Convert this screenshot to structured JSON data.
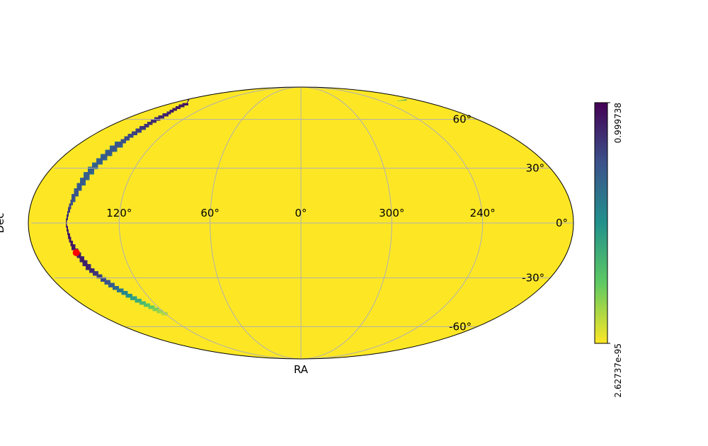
{
  "chart_data": {
    "type": "heatmap",
    "projection": "mollweide",
    "title": "",
    "xlabel": "RA",
    "ylabel": "Dec",
    "grid": true,
    "ra_ticks": [
      {
        "value": 120,
        "label": "120°"
      },
      {
        "value": 60,
        "label": "60°"
      },
      {
        "value": 0,
        "label": "0°"
      },
      {
        "value": 300,
        "label": "300°"
      },
      {
        "value": 240,
        "label": "240°"
      }
    ],
    "dec_ticks": [
      {
        "value": 60,
        "label": "60°"
      },
      {
        "value": 30,
        "label": "30°"
      },
      {
        "value": 0,
        "label": "0°"
      },
      {
        "value": -30,
        "label": "-30°"
      },
      {
        "value": -60,
        "label": "-60°"
      }
    ],
    "colormap": "viridis",
    "colorbar": {
      "min": 2.62737e-95,
      "max": 0.999738,
      "min_label": "2.62737e-95",
      "max_label": "0.999738",
      "colors": [
        "#fde725",
        "#5ec962",
        "#21918c",
        "#3b528b",
        "#440154"
      ]
    },
    "probability_arc": [
      {
        "ra": 215,
        "dec": 74,
        "p": 0.15
      },
      {
        "ra": 195,
        "dec": 75,
        "p": 0.5
      },
      {
        "ra": 175,
        "dec": 75,
        "p": 0.9
      },
      {
        "ra": 158,
        "dec": 72,
        "p": 0.95
      },
      {
        "ra": 148,
        "dec": 64,
        "p": 0.9
      },
      {
        "ra": 146,
        "dec": 55,
        "p": 0.85
      },
      {
        "ra": 147,
        "dec": 45,
        "p": 0.75
      },
      {
        "ra": 150,
        "dec": 30,
        "p": 0.7
      },
      {
        "ra": 153,
        "dec": 12,
        "p": 0.75
      },
      {
        "ra": 155,
        "dec": 0,
        "p": 0.9
      },
      {
        "ra": 153,
        "dec": -12,
        "p": 0.95
      },
      {
        "ra": 148,
        "dec": -25,
        "p": 0.9
      },
      {
        "ra": 140,
        "dec": -35,
        "p": 0.7
      },
      {
        "ra": 130,
        "dec": -44,
        "p": 0.35
      },
      {
        "ra": 120,
        "dec": -52,
        "p": 0.1
      }
    ],
    "arc_width_deg": 7,
    "source_marker": {
      "ra": 152,
      "dec": -16,
      "color": "#ff0000"
    }
  }
}
